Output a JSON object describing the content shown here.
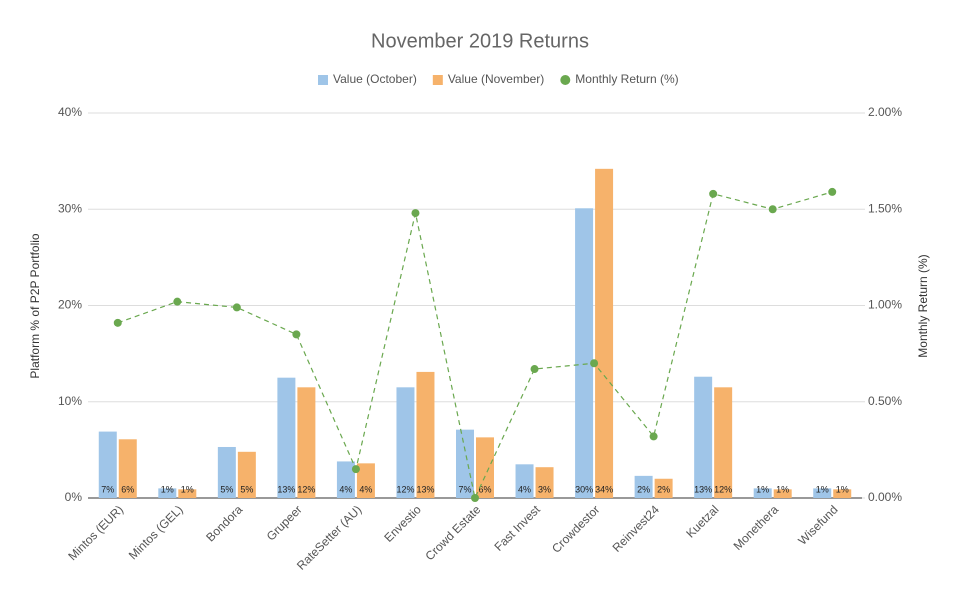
{
  "chart_data": {
    "type": "bar",
    "title": "November 2019 Returns",
    "categories": [
      "Mintos (EUR)",
      "Mintos (GEL)",
      "Bondora",
      "Grupeer",
      "RateSetter (AU)",
      "Envestio",
      "Crowd Estate",
      "Fast Invest",
      "Crowdestor",
      "Reinvest24",
      "Kuetzal",
      "Monethera",
      "Wisefund"
    ],
    "series": [
      {
        "name": "Value (October)",
        "color": "#9fc5e8",
        "values": [
          6.9,
          1.0,
          5.3,
          12.5,
          3.8,
          11.5,
          7.1,
          3.5,
          30.1,
          2.3,
          12.6,
          1.0,
          1.0
        ],
        "value_labels": [
          "7%",
          "1%",
          "5%",
          "13%",
          "4%",
          "12%",
          "7%",
          "4%",
          "30%",
          "2%",
          "13%",
          "1%",
          "1%"
        ]
      },
      {
        "name": "Value (November)",
        "color": "#f6b26b",
        "values": [
          6.1,
          0.9,
          4.8,
          11.5,
          3.6,
          13.1,
          6.3,
          3.2,
          34.2,
          2.0,
          11.5,
          0.9,
          0.9
        ],
        "value_labels": [
          "6%",
          "1%",
          "5%",
          "12%",
          "4%",
          "13%",
          "6%",
          "3%",
          "34%",
          "2%",
          "12%",
          "1%",
          "1%"
        ]
      },
      {
        "name": "Monthly Return (%)",
        "color": "#6aa84f",
        "type": "line",
        "dashed": true,
        "axis": "y2",
        "values": [
          0.91,
          1.02,
          0.99,
          0.85,
          0.15,
          1.48,
          0.0,
          0.67,
          0.7,
          0.32,
          1.58,
          1.5,
          1.59
        ]
      }
    ],
    "ylabel": "Platform % of P2P Portfolio",
    "y2label": "Monthly Return (%)",
    "ylim": [
      0,
      40
    ],
    "yticks": [
      {
        "value": 0,
        "label": "0%"
      },
      {
        "value": 10,
        "label": "10%"
      },
      {
        "value": 20,
        "label": "20%"
      },
      {
        "value": 30,
        "label": "30%"
      },
      {
        "value": 40,
        "label": "40%"
      }
    ],
    "y2lim": [
      0,
      2
    ],
    "y2ticks": [
      {
        "value": 0,
        "label": "0.00%"
      },
      {
        "value": 0.5,
        "label": "0.50%"
      },
      {
        "value": 1,
        "label": "1.00%"
      },
      {
        "value": 1.5,
        "label": "1.50%"
      },
      {
        "value": 2,
        "label": "2.00%"
      }
    ],
    "grid": true,
    "legend": "top"
  }
}
